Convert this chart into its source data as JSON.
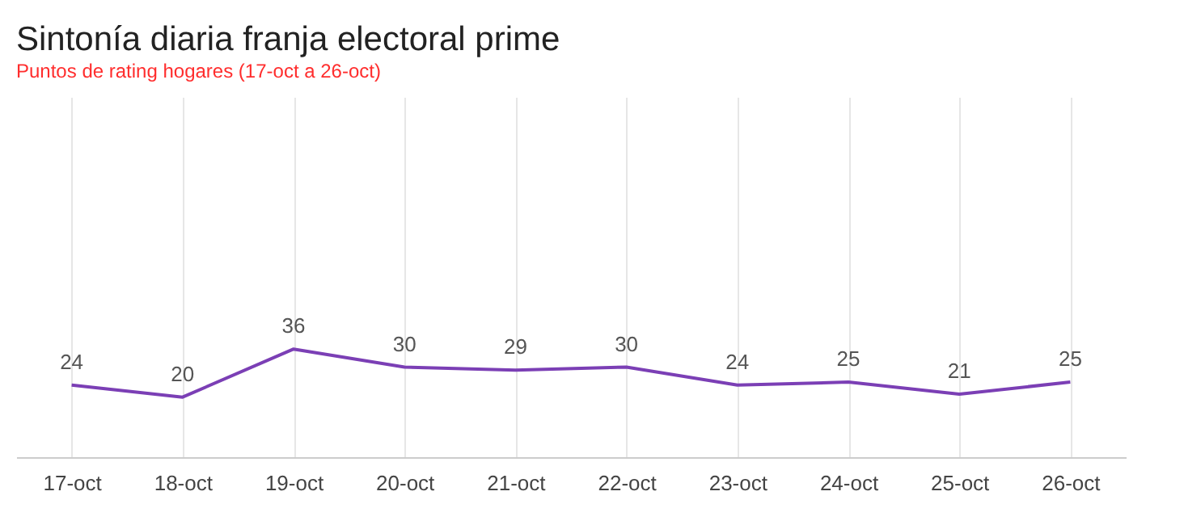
{
  "chart_data": {
    "type": "line",
    "title": "Sintonía diaria franja electoral prime",
    "subtitle": "Puntos de rating hogares (17-oct a 26-oct)",
    "categories": [
      "17-oct",
      "18-oct",
      "19-oct",
      "20-oct",
      "21-oct",
      "22-oct",
      "23-oct",
      "24-oct",
      "25-oct",
      "26-oct"
    ],
    "series": [
      {
        "color": "#7b3fb5",
        "values": [
          24,
          20,
          36,
          30,
          29,
          30,
          24,
          25,
          21,
          25
        ]
      }
    ],
    "ylim": [
      0,
      120
    ],
    "data_labels": true,
    "grid": "x",
    "tick_labels": "x",
    "marker": "none",
    "line_style": "solid"
  }
}
